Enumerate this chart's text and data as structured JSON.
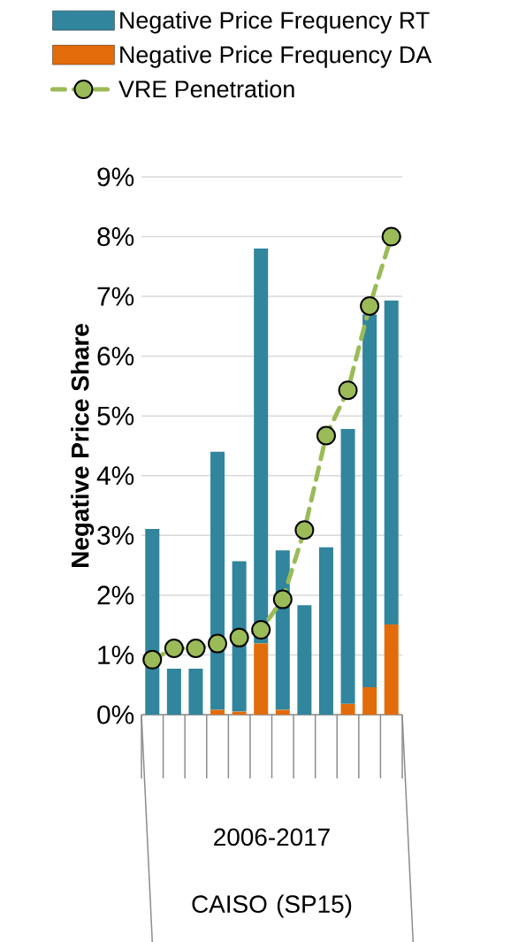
{
  "chart_data": {
    "type": "bar",
    "stacked": true,
    "ylabel": "Negative Price Share",
    "categories": [
      null,
      null,
      null,
      null,
      null,
      null,
      null,
      null,
      null,
      null,
      null,
      null
    ],
    "series": [
      {
        "name": "Negative Price Frequency DA",
        "color": "#e36c0a",
        "values": [
          0,
          0,
          0,
          0.08,
          0.05,
          1.19,
          0.08,
          0,
          0,
          0.18,
          0.46,
          1.51
        ]
      },
      {
        "name": "Negative Price Frequency RT",
        "color": "#31859c",
        "values": [
          3.11,
          0.77,
          0.77,
          4.32,
          2.52,
          6.61,
          2.67,
          1.83,
          2.8,
          4.6,
          6.24,
          5.42
        ]
      },
      {
        "name": "VRE Penetration",
        "type": "line",
        "color": "#9bbb59",
        "marker": "circle",
        "line_style": "dashed",
        "values": [
          0.92,
          1.11,
          1.11,
          1.19,
          1.29,
          1.42,
          1.93,
          3.09,
          4.67,
          5.43,
          6.84,
          8.0
        ]
      }
    ],
    "ylim": [
      0,
      9
    ],
    "yticks": [
      {
        "value": 0,
        "label": "0%"
      },
      {
        "value": 1,
        "label": "1%"
      },
      {
        "value": 2,
        "label": "2%"
      },
      {
        "value": 3,
        "label": "3%"
      },
      {
        "value": 4,
        "label": "4%"
      },
      {
        "value": 5,
        "label": "5%"
      },
      {
        "value": 6,
        "label": "6%"
      },
      {
        "value": 7,
        "label": "7%"
      },
      {
        "value": 8,
        "label": "8%"
      },
      {
        "value": 9,
        "label": "9%"
      }
    ],
    "grid": "y",
    "legend": "top",
    "annotations": [
      "2006-2017",
      "CAISO (SP15)"
    ]
  }
}
